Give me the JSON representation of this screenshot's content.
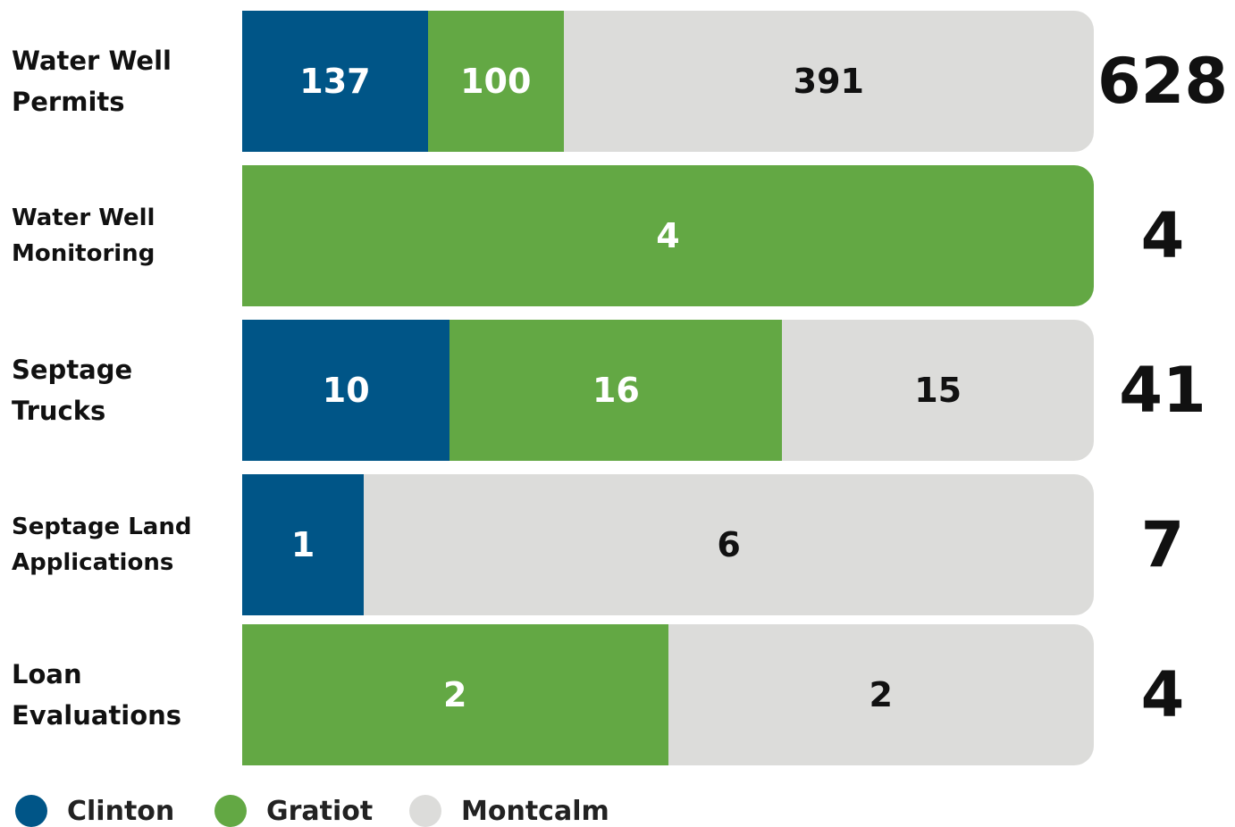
{
  "chart_data": {
    "type": "bar",
    "orientation": "horizontal",
    "stacked": true,
    "categories": [
      "Water Well Permits",
      "Water Well Monitoring",
      "Septage Trucks",
      "Septage Land Applications",
      "Loan Evaluations"
    ],
    "series": [
      {
        "name": "Clinton",
        "color": "#005587",
        "values": [
          137,
          null,
          10,
          1,
          null
        ]
      },
      {
        "name": "Gratiot",
        "color": "#63a844",
        "values": [
          100,
          4,
          16,
          null,
          2
        ]
      },
      {
        "name": "Montcalm",
        "color": "#dcdcda",
        "values": [
          391,
          null,
          15,
          6,
          2
        ]
      }
    ],
    "totals": [
      628,
      4,
      41,
      7,
      4
    ]
  }
}
